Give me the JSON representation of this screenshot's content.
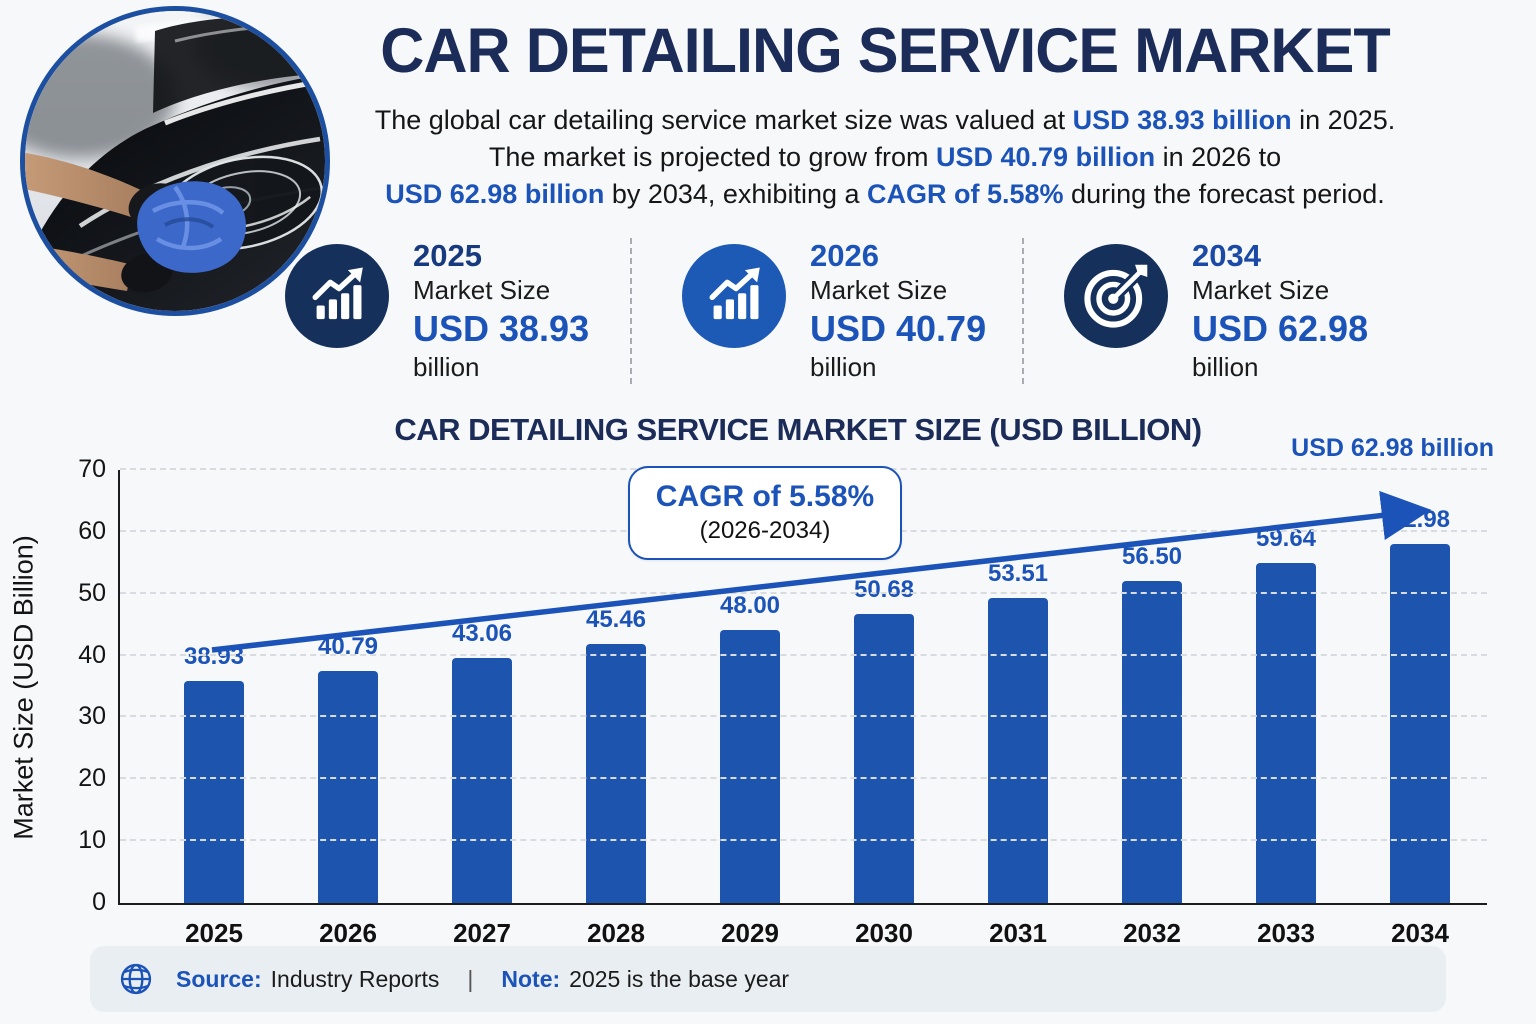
{
  "colors": {
    "accent": "#1b53b8",
    "navy": "#1c2c58",
    "bar": "#1d55ae",
    "axis": "#1c1c1c",
    "grid": "#d8dbdf",
    "footer_bg": "#e9eef3",
    "page_bg": "#f7f8fa",
    "icon_dark": "#16305c",
    "icon_bright": "#1c5ab5"
  },
  "header": {
    "title": "CAR DETAILING SERVICE MARKET",
    "subtitle_lines": [
      [
        {
          "t": "The global car detailing service market size was valued at ",
          "hl": false
        },
        {
          "t": "USD 38.93 billion",
          "hl": true
        },
        {
          "t": " in 2025.",
          "hl": false
        }
      ],
      [
        {
          "t": "The market is projected to grow from ",
          "hl": false
        },
        {
          "t": "USD 40.79 billion",
          "hl": true
        },
        {
          "t": " in 2026 to",
          "hl": false
        }
      ],
      [
        {
          "t": "USD 62.98 billion",
          "hl": true
        },
        {
          "t": " by 2034, exhibiting a ",
          "hl": false
        },
        {
          "t": "CAGR of 5.58%",
          "hl": true
        },
        {
          "t": " during the forecast period.",
          "hl": false
        }
      ]
    ]
  },
  "stats": {
    "cards": [
      {
        "year": "2025",
        "label": "Market Size",
        "value": "USD 38.93",
        "unit": "billion",
        "icon": "growth-chart-icon",
        "icon_bg": "#16305c",
        "year_color": "#163a7d"
      },
      {
        "year": "2026",
        "label": "Market Size",
        "value": "USD 40.79",
        "unit": "billion",
        "icon": "growth-chart-icon",
        "icon_bg": "#1c5ab5",
        "year_color": "#1b53b8"
      },
      {
        "year": "2034",
        "label": "Market Size",
        "value": "USD 62.98",
        "unit": "billion",
        "icon": "target-icon",
        "icon_bg": "#16305c",
        "year_color": "#1b4aa6"
      }
    ]
  },
  "chart": {
    "title": "CAR DETAILING SERVICE MARKET SIZE (USD BILLION)",
    "endpoint_label": "USD 62.98 billion",
    "cagr_callout": {
      "line1": "CAGR of 5.58%",
      "line2": "(2026-2034)"
    }
  },
  "chart_data": {
    "type": "bar",
    "title": "CAR DETAILING SERVICE MARKET SIZE (USD BILLION)",
    "categories": [
      "2025",
      "2026",
      "2027",
      "2028",
      "2029",
      "2030",
      "2031",
      "2032",
      "2033",
      "2034"
    ],
    "values": [
      38.93,
      40.79,
      43.06,
      45.46,
      48.0,
      50.68,
      53.51,
      56.5,
      59.64,
      62.98
    ],
    "value_labels": [
      "38.93",
      "40.79",
      "43.06",
      "45.46",
      "48.00",
      "50.68",
      "53.51",
      "56.50",
      "59.64",
      "62.98"
    ],
    "xlabel": "",
    "ylabel": "Market Size (USD Billion)",
    "ylim": [
      0,
      70
    ],
    "yticks": [
      0,
      10,
      20,
      30,
      40,
      50,
      60,
      70
    ],
    "grid": "horizontal-dashed",
    "bar_color": "#1d55ae",
    "legend": "none",
    "trend_arrow": true,
    "annotations": [
      "CAGR of 5.58% (2026-2034)",
      "USD 62.98 billion"
    ]
  },
  "footer": {
    "icon": "globe-icon",
    "source_label": "Source:",
    "source_value": "Industry Reports",
    "divider": "|",
    "note_label": "Note:",
    "note_value": "2025 is the base year"
  }
}
